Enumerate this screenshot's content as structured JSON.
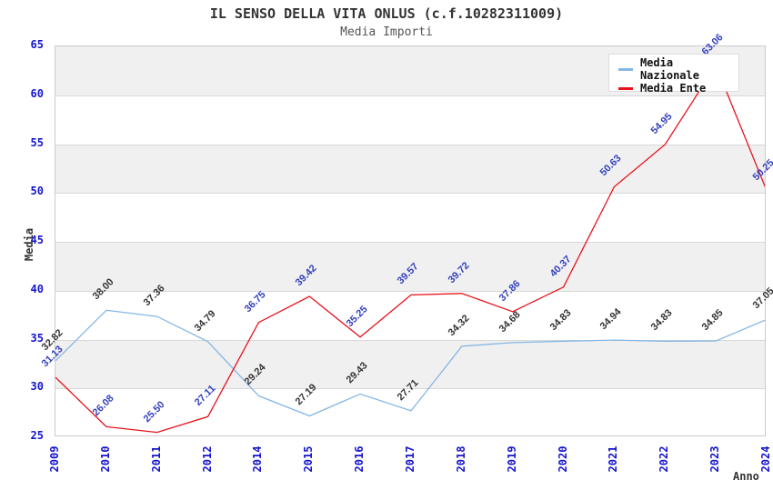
{
  "header": {
    "title": "IL SENSO DELLA VITA ONLUS (c.f.10282311009)",
    "subtitle": "Media Importi"
  },
  "chart_data": {
    "type": "line",
    "title": "IL SENSO DELLA VITA ONLUS (c.f.10282311009)",
    "subtitle": "Media Importi",
    "xlabel": "Anno",
    "ylabel": "Media",
    "categories": [
      "2009",
      "2010",
      "2011",
      "2012",
      "2014",
      "2015",
      "2016",
      "2017",
      "2018",
      "2019",
      "2020",
      "2021",
      "2022",
      "2023",
      "2024"
    ],
    "series": [
      {
        "name": "Media Nazionale",
        "color": "#85b7e4",
        "label_color": "#333333",
        "values": [
          32.82,
          38.0,
          37.36,
          34.79,
          29.24,
          27.19,
          29.43,
          27.71,
          34.32,
          34.68,
          34.83,
          34.94,
          34.83,
          34.85,
          37.05
        ]
      },
      {
        "name": "Media Ente",
        "color": "#e8121c",
        "label_color": "#3340bb",
        "values": [
          31.13,
          26.08,
          25.5,
          27.11,
          36.75,
          39.42,
          35.25,
          39.57,
          39.72,
          37.86,
          40.37,
          50.63,
          54.95,
          63.06,
          50.25
        ]
      }
    ],
    "ylim": [
      25,
      65
    ],
    "ytick_step": 5,
    "grid": "horizontal-bands",
    "band_color": "#f0f0f0",
    "gridline_color": "#d8d8d8",
    "tick_label_color": "#1414cc",
    "legend_position": "top-right"
  }
}
